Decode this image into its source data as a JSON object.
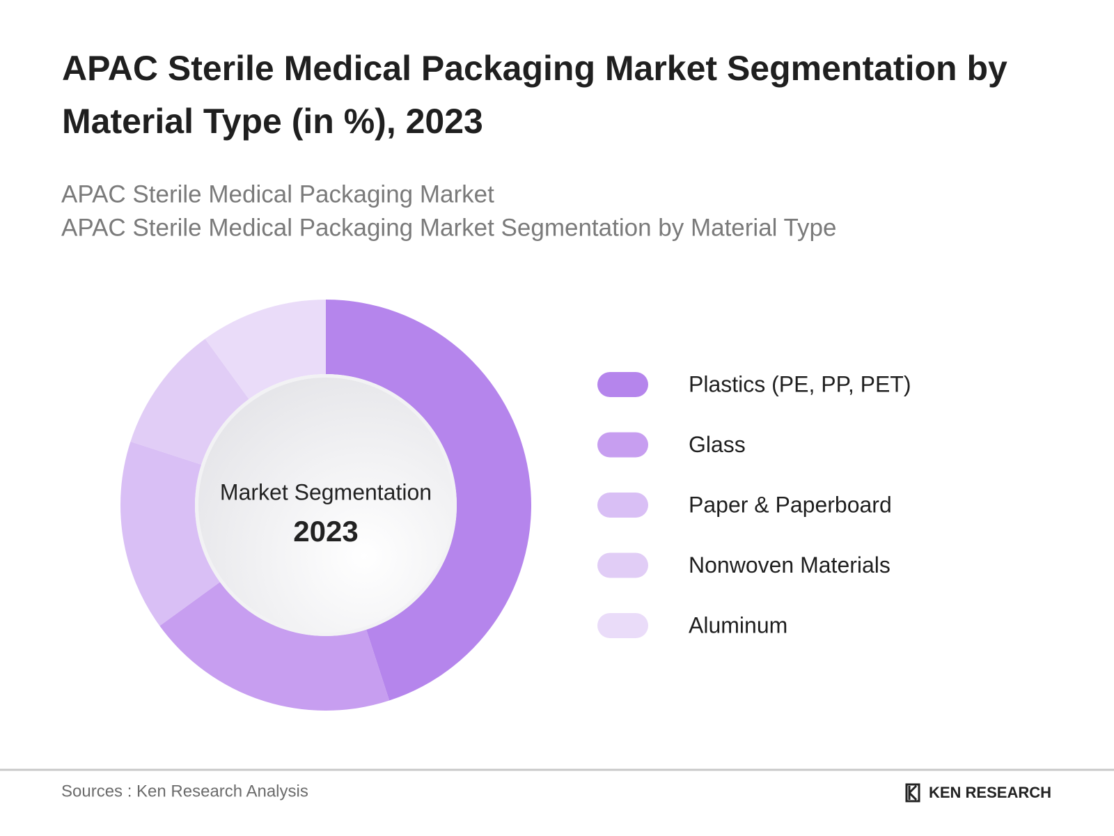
{
  "chart_data": {
    "type": "pie",
    "title": [
      "APAC Sterile Medical Packaging Market Segmentation by",
      "Material Type (in %), 2023"
    ],
    "subtitle": [
      "APAC Sterile Medical Packaging Market",
      "APAC Sterile Medical Packaging Market Segmentation by Material Type"
    ],
    "center_label": "Market Segmentation",
    "center_year": "2023",
    "categories": [
      "Plastics (PE, PP, PET)",
      "Glass",
      "Paper & Paperboard",
      "Nonwoven Materials",
      "Aluminum"
    ],
    "values": [
      45,
      20,
      15,
      10,
      10
    ],
    "colors": [
      "#b585ec",
      "#c79ef0",
      "#d9bff5",
      "#e1cdf6",
      "#eadcf9"
    ]
  },
  "footer": {
    "source": "Sources : Ken Research Analysis",
    "logo": "KEN RESEARCH"
  }
}
